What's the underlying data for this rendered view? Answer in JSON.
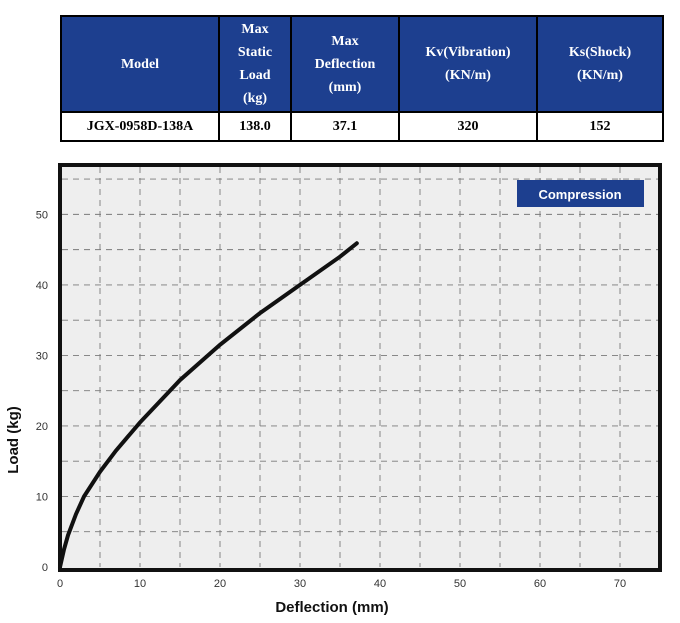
{
  "table": {
    "headers": [
      "Model",
      "Max\nStatic\nLoad\n(kg)",
      "Max\nDeflection\n(mm)",
      "Kv(Vibration)\n(KN/m)",
      "Ks(Shock)\n(KN/m)"
    ],
    "row": [
      "JGX-0958D-138A",
      "138.0",
      "37.1",
      "320",
      "152"
    ]
  },
  "chart_data": {
    "type": "line",
    "title": "",
    "legend": "Compression",
    "legend_position": "top-right",
    "xlabel": "Deflection (mm)",
    "ylabel": "Load (kg)",
    "xlim": [
      0,
      75
    ],
    "ylim": [
      0,
      57
    ],
    "xticks": [
      0,
      10,
      20,
      30,
      40,
      50,
      60,
      70
    ],
    "yticks": [
      0,
      10,
      20,
      30,
      40,
      50
    ],
    "grid": true,
    "series": [
      {
        "name": "Compression",
        "x": [
          0,
          0.5,
          1,
          2,
          3,
          5,
          7,
          10,
          15,
          20,
          25,
          30,
          35,
          37.1
        ],
        "y": [
          0,
          2.5,
          4.5,
          7.5,
          10,
          13.5,
          16.5,
          20.5,
          26.5,
          31.5,
          36,
          40,
          44,
          45.9
        ]
      }
    ]
  }
}
